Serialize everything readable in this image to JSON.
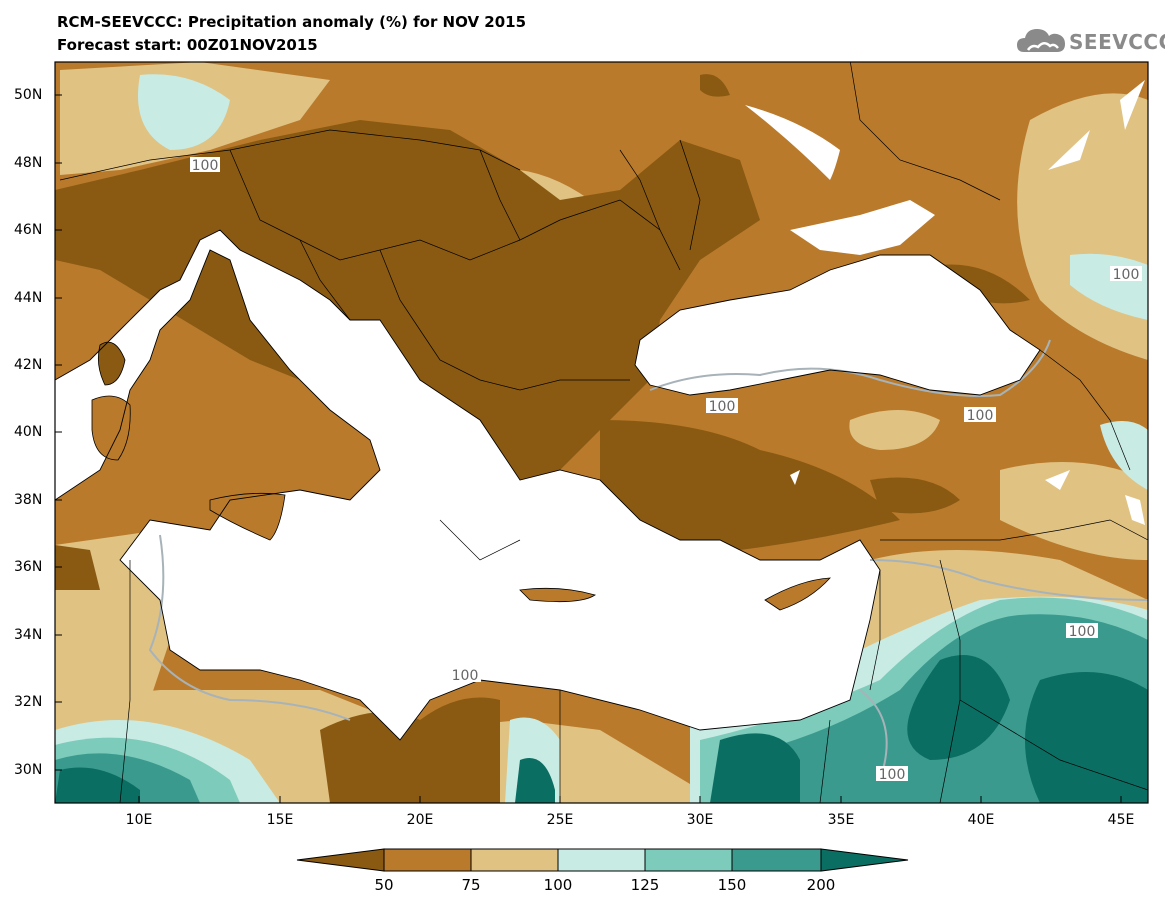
{
  "title": {
    "line1": "RCM-SEEVCCC: Precipitation anomaly (%) for NOV 2015",
    "line2": "Forecast start: 00Z01NOV2015"
  },
  "logo": {
    "text": "SEEVCCC",
    "icon": "cloud-icon"
  },
  "map": {
    "lat_labels": [
      "50N",
      "48N",
      "46N",
      "44N",
      "42N",
      "40N",
      "38N",
      "36N",
      "34N",
      "32N",
      "30N"
    ],
    "lon_labels": [
      "10E",
      "15E",
      "20E",
      "25E",
      "30E",
      "35E",
      "40E",
      "45E"
    ],
    "contour_labels": [
      "100",
      "100",
      "100",
      "100",
      "100",
      "100",
      "100"
    ]
  },
  "colorbar": {
    "labels": [
      "50",
      "75",
      "100",
      "125",
      "150",
      "200"
    ],
    "colors": [
      "#8a5a12",
      "#b97a2c",
      "#e0c283",
      "#c8ebe4",
      "#7ccbbb",
      "#3a9a8e",
      "#0b6e62"
    ]
  }
}
